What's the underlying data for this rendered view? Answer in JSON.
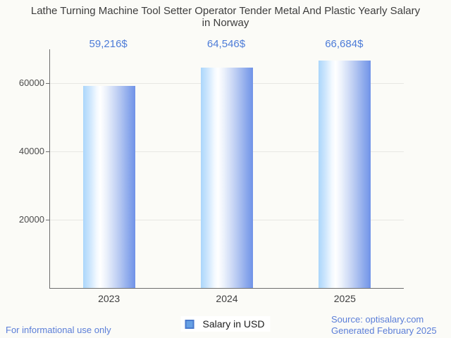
{
  "title": {
    "lines": [
      "Lathe Turning Machine Tool Setter Operator Tender Metal And Plastic Yearly Salary",
      "in Norway"
    ]
  },
  "chart_data": {
    "type": "bar",
    "title": "Lathe Turning Machine Tool Setter Operator Tender Metal And Plastic Yearly Salary in Norway",
    "categories": [
      "2023",
      "2024",
      "2025"
    ],
    "series": [
      {
        "name": "Salary in USD",
        "values": [
          59216,
          64546,
          66684
        ]
      }
    ],
    "value_labels": [
      "59,216$",
      "64,546$",
      "66,684$"
    ],
    "xlabel": "",
    "ylabel": "",
    "ylim": [
      0,
      70000
    ],
    "yticks": [
      20000,
      40000,
      60000
    ],
    "grid": true,
    "legend_position": "bottom",
    "bar_gradient": [
      "#abd6fb",
      "#ffffff",
      "#7093e8"
    ]
  },
  "legend": {
    "label": "Salary in USD",
    "swatch_fill": "#66a0e4",
    "swatch_border": "#4a7ace"
  },
  "footer": {
    "left": "For informational use only",
    "source": "Source: optisalary.com",
    "generated": "Generated February 2025"
  },
  "colors": {
    "background": "#fbfbf7",
    "title_text": "#3d3d3d",
    "value_blue": "#4d7cd8",
    "link_blue": "#5b7ed8",
    "axis": "#6e6e6e",
    "gridline": "#e7e7e3"
  }
}
